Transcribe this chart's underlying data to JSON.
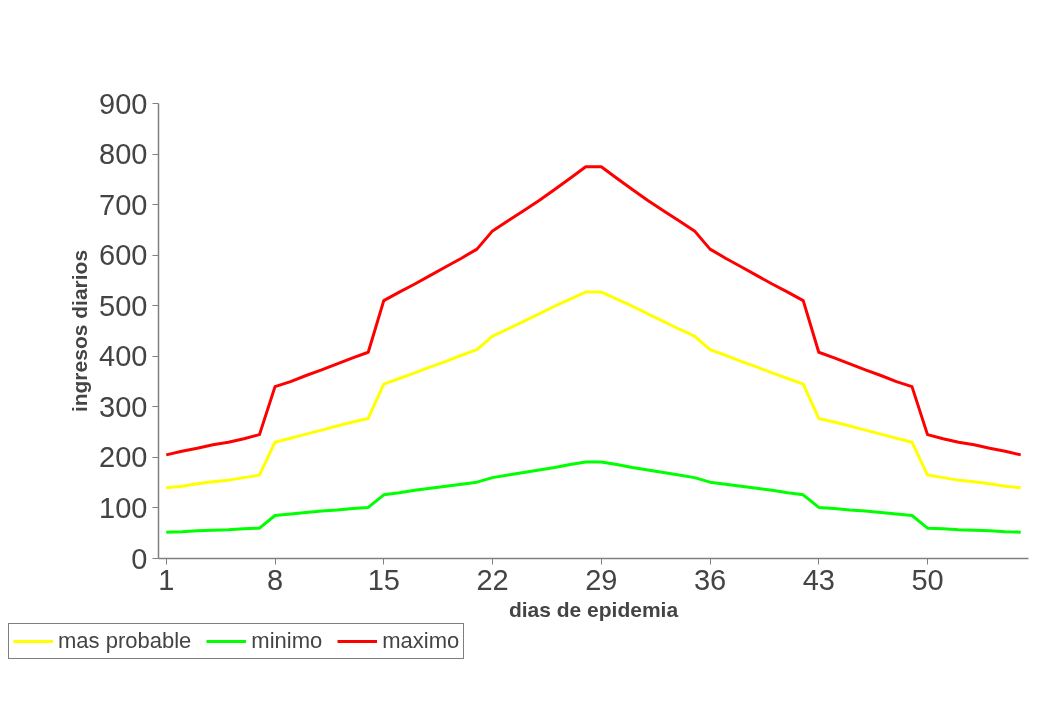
{
  "chart_data": {
    "type": "line",
    "xlabel": "dias de epidemia",
    "ylabel": "ingresos diarios",
    "x": [
      1,
      2,
      3,
      4,
      5,
      6,
      7,
      8,
      9,
      10,
      11,
      12,
      13,
      14,
      15,
      16,
      17,
      18,
      19,
      20,
      21,
      22,
      23,
      24,
      25,
      26,
      27,
      28,
      29,
      30,
      31,
      32,
      33,
      34,
      35,
      36,
      37,
      38,
      39,
      40,
      41,
      42,
      43,
      44,
      45,
      46,
      47,
      48,
      49,
      50,
      51,
      52,
      53,
      54,
      55,
      56
    ],
    "series": [
      {
        "name": "mas probable",
        "color": "#ffff00",
        "values": [
          140,
          143,
          148,
          152,
          155,
          160,
          165,
          230,
          238,
          246,
          254,
          262,
          270,
          277,
          345,
          356,
          367,
          379,
          390,
          402,
          413,
          440,
          454,
          469,
          484,
          499,
          513,
          527,
          527,
          513,
          499,
          484,
          469,
          454,
          440,
          413,
          402,
          390,
          379,
          367,
          356,
          345,
          277,
          270,
          262,
          254,
          246,
          238,
          230,
          165,
          160,
          155,
          152,
          148,
          143,
          140
        ]
      },
      {
        "name": "minimo",
        "color": "#00ff00",
        "values": [
          52,
          53,
          55,
          56,
          57,
          59,
          60,
          85,
          88,
          91,
          94,
          96,
          99,
          101,
          126,
          130,
          135,
          139,
          143,
          147,
          151,
          160,
          165,
          170,
          175,
          180,
          186,
          191,
          191,
          186,
          180,
          175,
          170,
          165,
          160,
          151,
          147,
          143,
          139,
          135,
          130,
          126,
          101,
          99,
          96,
          94,
          91,
          88,
          85,
          60,
          59,
          57,
          56,
          55,
          53,
          52
        ]
      },
      {
        "name": "maximo",
        "color": "#ff0000",
        "values": [
          205,
          212,
          218,
          225,
          230,
          237,
          245,
          340,
          350,
          362,
          373,
          385,
          397,
          408,
          510,
          527,
          543,
          560,
          577,
          594,
          612,
          648,
          668,
          688,
          708,
          730,
          752,
          775,
          775,
          752,
          730,
          708,
          688,
          668,
          648,
          612,
          594,
          577,
          560,
          543,
          527,
          510,
          408,
          397,
          385,
          373,
          362,
          350,
          340,
          245,
          237,
          230,
          225,
          218,
          212,
          205
        ]
      }
    ],
    "xlim": [
      0.5,
      56.5
    ],
    "xticks": [
      1,
      8,
      15,
      22,
      29,
      36,
      43,
      50
    ],
    "ylim": [
      0,
      900
    ],
    "yticks": [
      0,
      100,
      200,
      300,
      400,
      500,
      600,
      700,
      800,
      900
    ],
    "grid": false,
    "legend": "bottom",
    "line_style": "solid",
    "marker": "none"
  }
}
